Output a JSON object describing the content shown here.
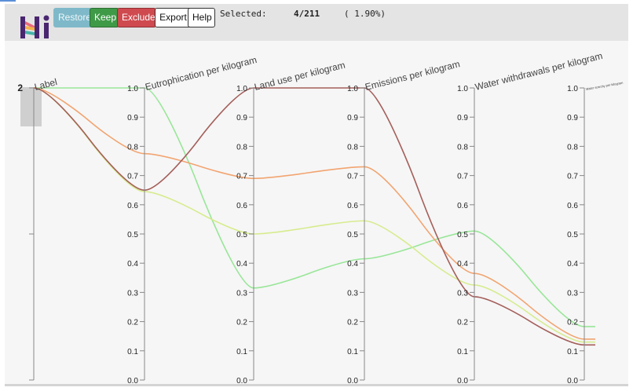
{
  "header": {
    "logo": "Hi",
    "buttons": {
      "restore": "Restore",
      "keep": "Keep",
      "exclude": "Exclude",
      "export": "Export",
      "help": "Help"
    },
    "selection": {
      "label": "Selected:",
      "count": "4/211",
      "percent": "( 1.90%)"
    }
  },
  "colors": {
    "header_bg": "#e4e4e4",
    "plot_bg": "#f6f6f6",
    "restore": "#7fb9c9",
    "keep": "#3f9a47",
    "exclude": "#cf4a4f",
    "line_green": "#98e698",
    "line_orange": "#f2a470",
    "line_yellowgreen": "#d6ec8e",
    "line_brown": "#a45f5b"
  },
  "chart_data": {
    "type": "parallel-coordinates",
    "axes": [
      {
        "name": "Label",
        "ticks": [
          "2"
        ],
        "brush": true
      },
      {
        "name": "Eutrophication per kilogram",
        "ticks": [
          "0.0",
          "0.1",
          "0.2",
          "0.3",
          "0.4",
          "0.5",
          "0.6",
          "0.7",
          "0.8",
          "0.9",
          "1.0"
        ]
      },
      {
        "name": "Land use per kilogram",
        "ticks": [
          "0.0",
          "0.1",
          "0.2",
          "0.3",
          "0.4",
          "0.5",
          "0.6",
          "0.7",
          "0.8",
          "0.9",
          "1.0"
        ]
      },
      {
        "name": "Emissions per kilogram",
        "ticks": [
          "0.0",
          "0.1",
          "0.2",
          "0.3",
          "0.4",
          "0.5",
          "0.6",
          "0.7",
          "0.8",
          "0.9",
          "1.0"
        ]
      },
      {
        "name": "Water withdrawals per kilogram",
        "ticks": [
          "0.0",
          "0.1",
          "0.2",
          "0.3",
          "0.4",
          "0.5",
          "0.6",
          "0.7",
          "0.8",
          "0.9",
          "1.0"
        ]
      },
      {
        "name": "Water scarcity per kilogram",
        "ticks": [
          "0.0",
          "0.1",
          "0.2",
          "0.3",
          "0.4",
          "0.5",
          "0.6",
          "0.7",
          "0.8",
          "0.9",
          "1.0"
        ]
      }
    ],
    "series": [
      {
        "name": "line-1",
        "color": "#98e698",
        "values": [
          1.0,
          1.0,
          0.315,
          0.415,
          0.51,
          0.183
        ]
      },
      {
        "name": "line-2",
        "color": "#f2a470",
        "values": [
          1.0,
          0.775,
          0.69,
          0.73,
          0.365,
          0.14
        ]
      },
      {
        "name": "line-3",
        "color": "#d6ec8e",
        "values": [
          1.0,
          0.645,
          0.5,
          0.545,
          0.325,
          0.13
        ]
      },
      {
        "name": "line-4",
        "color": "#a45f5b",
        "values": [
          1.0,
          0.65,
          1.0,
          1.0,
          0.285,
          0.12
        ]
      }
    ],
    "ylim": [
      0,
      1
    ]
  }
}
